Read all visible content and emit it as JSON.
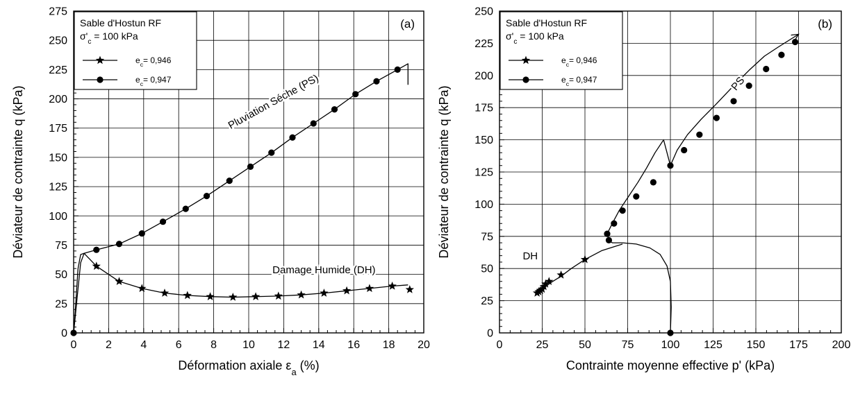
{
  "chart_data": [
    {
      "type": "line",
      "panel": "(a)",
      "xlabel": "Déformation axiale ε",
      "xlabel_sub": "a",
      "xlabel_unit": " (%)",
      "ylabel": "Déviateur de contrainte q (kPa)",
      "xlim": [
        0,
        20
      ],
      "ylim": [
        0,
        275
      ],
      "xticks": [
        0,
        2,
        4,
        6,
        8,
        10,
        12,
        14,
        16,
        18,
        20
      ],
      "yticks": [
        0,
        25,
        50,
        75,
        100,
        125,
        150,
        175,
        200,
        225,
        250,
        275
      ],
      "grid": true,
      "legend": {
        "title_line1": "Sable d'Hostun RF",
        "title_line2_pre": "σ'",
        "title_line2_sub": "c",
        "title_line2_post": " = 100 kPa",
        "entries": [
          {
            "pre": "e",
            "sub": "c",
            "post": "= 0,946",
            "marker": "star"
          },
          {
            "pre": "e",
            "sub": "c",
            "post": "= 0,947",
            "marker": "circle"
          }
        ]
      },
      "annotations": [
        {
          "text": "Pluviation Séche (PS)",
          "x": 11.5,
          "y": 195,
          "rotate": -29
        },
        {
          "text": "Damage Humide (DH)",
          "x": 14.3,
          "y": 51,
          "rotate": 0
        }
      ],
      "series": [
        {
          "marker": "circle",
          "curve": [
            [
              0,
              0
            ],
            [
              0.2,
              30
            ],
            [
              0.4,
              60
            ],
            [
              0.6,
              68
            ],
            [
              1.3,
              71
            ],
            [
              2.6,
              76
            ],
            [
              3.9,
              85
            ],
            [
              5.1,
              95
            ],
            [
              6.4,
              106
            ],
            [
              7.6,
              117
            ],
            [
              8.9,
              130
            ],
            [
              10.1,
              142
            ],
            [
              11.3,
              154
            ],
            [
              12.5,
              167
            ],
            [
              13.7,
              179
            ],
            [
              14.9,
              191
            ],
            [
              16.1,
              204
            ],
            [
              17.3,
              215
            ],
            [
              18.5,
              225
            ],
            [
              19.1,
              230
            ],
            [
              19.1,
              212
            ]
          ],
          "markers": [
            [
              0,
              0
            ],
            [
              1.3,
              71
            ],
            [
              2.6,
              76
            ],
            [
              3.9,
              85
            ],
            [
              5.1,
              95
            ],
            [
              6.4,
              106
            ],
            [
              7.6,
              117
            ],
            [
              8.9,
              130
            ],
            [
              10.1,
              142
            ],
            [
              11.3,
              154
            ],
            [
              12.5,
              167
            ],
            [
              13.7,
              179
            ],
            [
              14.9,
              191
            ],
            [
              16.1,
              204
            ],
            [
              17.3,
              215
            ],
            [
              18.5,
              225
            ]
          ]
        },
        {
          "marker": "star",
          "curve": [
            [
              0,
              0
            ],
            [
              0.1,
              20
            ],
            [
              0.25,
              55
            ],
            [
              0.4,
              67
            ],
            [
              0.6,
              68
            ],
            [
              1.3,
              57
            ],
            [
              2.6,
              44
            ],
            [
              3.9,
              38
            ],
            [
              5.2,
              34
            ],
            [
              6.5,
              32
            ],
            [
              7.8,
              31
            ],
            [
              9.1,
              30.5
            ],
            [
              10.4,
              31
            ],
            [
              11.7,
              31.5
            ],
            [
              13.0,
              32.5
            ],
            [
              14.3,
              34
            ],
            [
              15.6,
              36
            ],
            [
              16.9,
              38
            ],
            [
              18.2,
              40
            ],
            [
              19.1,
              41
            ]
          ],
          "markers": [
            [
              1.3,
              57
            ],
            [
              2.6,
              44
            ],
            [
              3.9,
              38
            ],
            [
              5.2,
              34
            ],
            [
              6.5,
              32
            ],
            [
              7.8,
              31
            ],
            [
              9.1,
              30.5
            ],
            [
              10.4,
              31
            ],
            [
              11.7,
              31.5
            ],
            [
              13.0,
              32.5
            ],
            [
              14.3,
              34
            ],
            [
              15.6,
              36
            ],
            [
              16.9,
              38
            ],
            [
              18.2,
              40
            ],
            [
              19.2,
              37
            ]
          ]
        }
      ]
    },
    {
      "type": "line",
      "panel": "(b)",
      "xlabel": "Contrainte moyenne effective  p' (kPa)",
      "ylabel": "Déviateur de contrainte q (kPa)",
      "xlim": [
        0,
        200
      ],
      "ylim": [
        0,
        250
      ],
      "xticks": [
        0,
        25,
        50,
        75,
        100,
        125,
        150,
        175,
        200
      ],
      "yticks": [
        0,
        25,
        50,
        75,
        100,
        125,
        150,
        175,
        200,
        225,
        250
      ],
      "grid": true,
      "legend": {
        "title_line1": "Sable d'Hostun RF",
        "title_line2_pre": "σ'",
        "title_line2_sub": "c",
        "title_line2_post": " = 100 kPa",
        "entries": [
          {
            "pre": "e",
            "sub": "c",
            "post": "= 0,946",
            "marker": "star"
          },
          {
            "pre": "e",
            "sub": "c",
            "post": "= 0,947",
            "marker": "circle"
          }
        ]
      },
      "annotations": [
        {
          "text": "PS",
          "x": 141,
          "y": 192,
          "rotate": -50
        },
        {
          "text": "DH",
          "x": 18,
          "y": 57,
          "rotate": 0
        }
      ],
      "series": [
        {
          "marker": "circle",
          "curve": [
            [
              100,
              0
            ],
            [
              100.5,
              20
            ],
            [
              100,
              40
            ],
            [
              98,
              52
            ],
            [
              94,
              61
            ],
            [
              88,
              66
            ],
            [
              80,
              69
            ],
            [
              72,
              70
            ],
            [
              66,
              70
            ],
            [
              64,
              72
            ],
            [
              63,
              77
            ],
            [
              66,
              85
            ],
            [
              70,
              95
            ],
            [
              75,
              105
            ],
            [
              81,
              117
            ],
            [
              86,
              128
            ],
            [
              91,
              140
            ],
            [
              96,
              150
            ],
            [
              100,
              130
            ],
            [
              104,
              142
            ],
            [
              110,
              154
            ],
            [
              118,
              166
            ],
            [
              127,
              178
            ],
            [
              137,
              192
            ],
            [
              146,
              204
            ],
            [
              155,
              215
            ],
            [
              163,
              222
            ],
            [
              175,
              232
            ]
          ],
          "markers": [
            [
              100,
              0
            ],
            [
              64,
              72
            ],
            [
              63,
              77
            ],
            [
              67,
              85
            ],
            [
              72,
              95
            ],
            [
              80,
              106
            ],
            [
              90,
              117
            ],
            [
              100,
              130
            ],
            [
              108,
              142
            ],
            [
              117,
              154
            ],
            [
              127,
              167
            ],
            [
              137,
              180
            ],
            [
              146,
              192
            ],
            [
              156,
              205
            ],
            [
              165,
              216
            ],
            [
              173,
              226
            ]
          ]
        },
        {
          "marker": "star",
          "curve": [
            [
              72,
              69
            ],
            [
              60,
              64
            ],
            [
              50,
              57
            ],
            [
              42,
              50
            ],
            [
              36,
              44
            ],
            [
              30,
              39
            ],
            [
              26,
              35
            ],
            [
              23,
              32
            ],
            [
              22,
              31
            ]
          ],
          "markers": [
            [
              50,
              57
            ],
            [
              36,
              45
            ],
            [
              29,
              40
            ],
            [
              27,
              38
            ],
            [
              26,
              36
            ],
            [
              25,
              34
            ],
            [
              24,
              33
            ],
            [
              23,
              32
            ],
            [
              22,
              31
            ]
          ]
        }
      ]
    }
  ]
}
